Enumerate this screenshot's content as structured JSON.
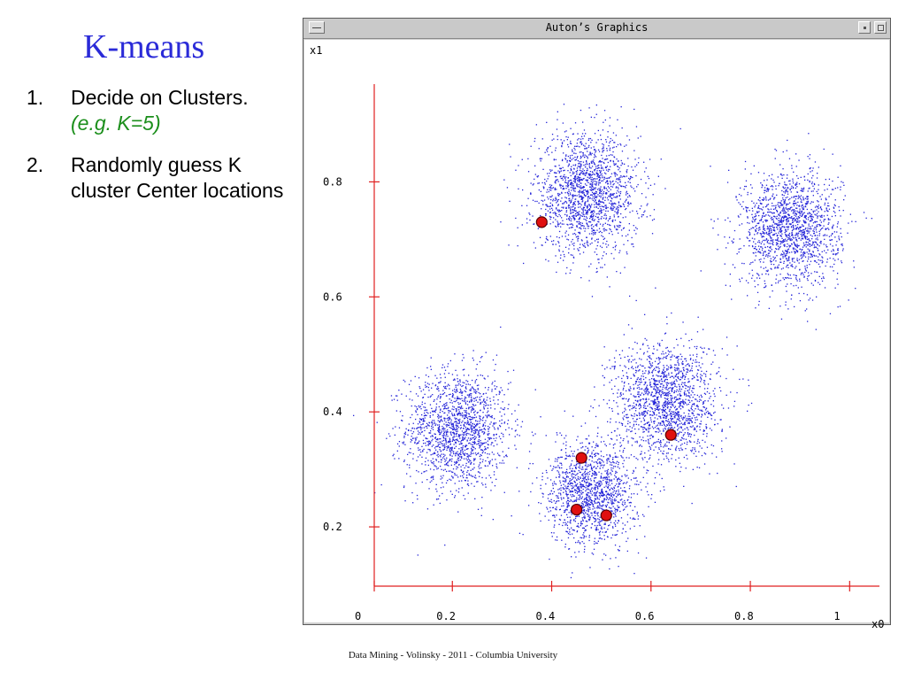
{
  "slide": {
    "title": "K-means",
    "steps": [
      {
        "number": "1.",
        "text": "Decide on Clusters.",
        "example": "(e.g. K=5)"
      },
      {
        "number": "2.",
        "text": "Randomly guess K cluster Center locations"
      }
    ],
    "footer": "Data Mining - Volinsky - 2011 -  Columbia University"
  },
  "window": {
    "title": "Auton’s Graphics",
    "buttons": [
      "window-menu",
      "minimize",
      "maximize"
    ]
  },
  "chart_data": {
    "type": "scatter",
    "xlabel": "x0",
    "ylabel": "x1",
    "x_ticks": [
      "0",
      "0.2",
      "0.4",
      "0.6",
      "0.8",
      "1"
    ],
    "y_ticks": [
      "0.2",
      "0.4",
      "0.6",
      "0.8"
    ],
    "xlim": [
      0.0,
      1.06
    ],
    "ylim": [
      0.1,
      0.97
    ],
    "grid": false,
    "colors": {
      "points": "#2424d8",
      "axes": "#e02020",
      "centers": "#e01010"
    },
    "clusters": [
      {
        "center": [
          0.21,
          0.37
        ],
        "spread": 0.052,
        "approx_points": 1600
      },
      {
        "center": [
          0.47,
          0.78
        ],
        "spread": 0.052,
        "approx_points": 1700
      },
      {
        "center": [
          0.88,
          0.72
        ],
        "spread": 0.05,
        "approx_points": 1600
      },
      {
        "center": [
          0.63,
          0.42
        ],
        "spread": 0.052,
        "approx_points": 1600
      },
      {
        "center": [
          0.48,
          0.26
        ],
        "spread": 0.045,
        "approx_points": 1400
      }
    ],
    "guessed_centers": [
      {
        "x": 0.38,
        "y": 0.73
      },
      {
        "x": 0.46,
        "y": 0.32
      },
      {
        "x": 0.64,
        "y": 0.36
      },
      {
        "x": 0.45,
        "y": 0.23
      },
      {
        "x": 0.51,
        "y": 0.22
      }
    ]
  }
}
